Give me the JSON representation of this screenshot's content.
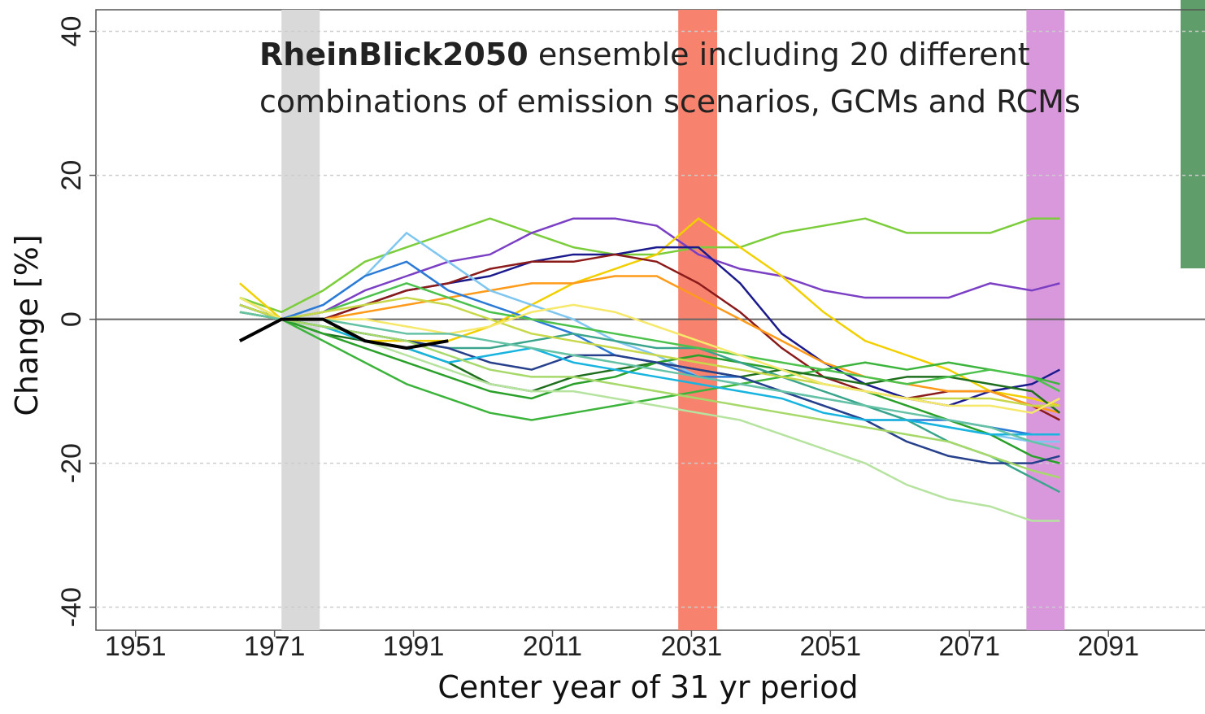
{
  "chart_data": {
    "type": "line",
    "annotation": {
      "bold": "RheinBlick2050",
      "text": "ensemble including 20 different",
      "text2": "combinations of emission scenarios, GCMs and RCMs"
    },
    "xlabel": "Center year of 31 yr period",
    "ylabel": "Change [%]",
    "xlim": [
      1945.3,
      2104.9
    ],
    "ylim": [
      -43.2,
      43
    ],
    "xticks": [
      1951,
      1971,
      1991,
      2011,
      2031,
      2051,
      2071,
      2091
    ],
    "yticks": [
      40,
      20,
      0,
      -20,
      -40
    ],
    "grid": true,
    "bands": [
      {
        "x0": 1972.0,
        "x1": 1977.5,
        "color": "#d9d9d9"
      },
      {
        "x0": 2029.1,
        "x1": 2034.7,
        "color": "#f7836f"
      },
      {
        "x0": 2079.2,
        "x1": 2084.7,
        "color": "#d998dc"
      }
    ],
    "x": [
      1966,
      1972,
      1978,
      1984,
      1990,
      1996,
      2002,
      2008,
      2014,
      2020,
      2026,
      2032,
      2038,
      2044,
      2050,
      2056,
      2062,
      2068,
      2074,
      2080,
      2084
    ],
    "series": [
      {
        "color": "#7ccd3c",
        "values": [
          3,
          1,
          4,
          8,
          10,
          12,
          14,
          12,
          10,
          9,
          9,
          10,
          10,
          12,
          13,
          14,
          12,
          12,
          12,
          14,
          14
        ]
      },
      {
        "color": "#7b3fc4",
        "values": [
          2,
          0,
          1,
          4,
          6,
          8,
          9,
          12,
          14,
          14,
          13,
          9,
          7,
          6,
          4,
          3,
          3,
          3,
          5,
          4,
          5
        ]
      },
      {
        "color": "#f2d000",
        "values": [
          5,
          0,
          -1,
          -3,
          -3,
          -3,
          -1,
          2,
          5,
          7,
          9,
          14,
          10,
          6,
          1,
          -3,
          -5,
          -7,
          -10,
          -11,
          -12
        ]
      },
      {
        "color": "#1a1a8c",
        "values": [
          2,
          0,
          0,
          2,
          4,
          5,
          6,
          8,
          9,
          9,
          10,
          10,
          5,
          -2,
          -6,
          -9,
          -11,
          -12,
          -10,
          -9,
          -7
        ]
      },
      {
        "color": "#8b1a1a",
        "values": [
          1,
          0,
          0,
          2,
          4,
          5,
          7,
          8,
          8,
          9,
          8,
          5,
          1,
          -4,
          -8,
          -10,
          -11,
          -10,
          -10,
          -12,
          -14
        ]
      },
      {
        "color": "#ff9a1a",
        "values": [
          3,
          0,
          0,
          1,
          2,
          3,
          4,
          5,
          5,
          6,
          6,
          3,
          0,
          -3,
          -6,
          -8,
          -9,
          -10,
          -10,
          -12,
          -13
        ]
      },
      {
        "color": "#7fc6f0",
        "values": [
          2,
          0,
          2,
          6,
          12,
          8,
          4,
          2,
          0,
          -3,
          -5,
          -8,
          -9,
          -10,
          -11,
          -12,
          -14,
          -15,
          -16,
          -17,
          -17
        ]
      },
      {
        "color": "#2b7bd6",
        "values": [
          1,
          0,
          2,
          6,
          8,
          4,
          2,
          0,
          -2,
          -5,
          -6,
          -8,
          -8,
          -10,
          -12,
          -14,
          -14,
          -14,
          -15,
          -16,
          -16
        ]
      },
      {
        "color": "#3cb43c",
        "values": [
          1,
          0,
          -3,
          -6,
          -9,
          -11,
          -13,
          -14,
          -13,
          -12,
          -11,
          -10,
          -9,
          -8,
          -7,
          -6,
          -7,
          -6,
          -7,
          -8,
          -9
        ]
      },
      {
        "color": "#1e6e1e",
        "values": [
          2,
          0,
          -2,
          -3,
          -4,
          -6,
          -9,
          -10,
          -8,
          -7,
          -6,
          -7,
          -8,
          -7,
          -8,
          -9,
          -8,
          -8,
          -9,
          -10,
          -13
        ]
      },
      {
        "color": "#2aa02a",
        "values": [
          1,
          0,
          -2,
          -4,
          -6,
          -8,
          -10,
          -11,
          -9,
          -8,
          -6,
          -5,
          -6,
          -7,
          -9,
          -10,
          -12,
          -14,
          -16,
          -19,
          -20
        ]
      },
      {
        "color": "#b6e3a0",
        "values": [
          1,
          0,
          -1,
          -3,
          -5,
          -7,
          -9,
          -10,
          -10,
          -11,
          -12,
          -13,
          -14,
          -16,
          -18,
          -20,
          -23,
          -25,
          -26,
          -28,
          -28
        ]
      },
      {
        "color": "#3aa58c",
        "values": [
          2,
          0,
          -1,
          -2,
          -3,
          -4,
          -4,
          -3,
          -2,
          -3,
          -4,
          -4,
          -6,
          -8,
          -10,
          -12,
          -14,
          -17,
          -19,
          -22,
          -24
        ]
      },
      {
        "color": "#27408b",
        "values": [
          2,
          0,
          -1,
          -2,
          -3,
          -4,
          -6,
          -7,
          -5,
          -5,
          -6,
          -7,
          -8,
          -10,
          -12,
          -14,
          -17,
          -19,
          -20,
          -20,
          -19
        ]
      },
      {
        "color": "#18b4e0",
        "values": [
          2,
          0,
          -1,
          -3,
          -4,
          -6,
          -5,
          -4,
          -6,
          -7,
          -8,
          -9,
          -10,
          -11,
          -13,
          -14,
          -14,
          -15,
          -16,
          -16,
          -16
        ]
      },
      {
        "color": "#a6d96a",
        "values": [
          1,
          0,
          -1,
          -2,
          -3,
          -5,
          -7,
          -8,
          -8,
          -9,
          -10,
          -11,
          -12,
          -13,
          -14,
          -15,
          -16,
          -17,
          -19,
          -21,
          -22
        ]
      },
      {
        "color": "#4cc24c",
        "values": [
          3,
          0,
          1,
          3,
          5,
          3,
          1,
          0,
          -1,
          -2,
          -3,
          -4,
          -5,
          -6,
          -7,
          -8,
          -9,
          -8,
          -7,
          -8,
          -10
        ]
      },
      {
        "color": "#c8d84a",
        "values": [
          2,
          0,
          1,
          2,
          3,
          2,
          0,
          -2,
          -3,
          -4,
          -5,
          -6,
          -7,
          -8,
          -9,
          -10,
          -11,
          -11,
          -11,
          -12,
          -12
        ]
      },
      {
        "color": "#f5e86a",
        "values": [
          3,
          0,
          0,
          0,
          -1,
          -2,
          -1,
          1,
          2,
          1,
          -1,
          -3,
          -5,
          -7,
          -9,
          -10,
          -11,
          -12,
          -12,
          -13,
          -11
        ]
      },
      {
        "color": "#66c2a5",
        "values": [
          1,
          0,
          0,
          -1,
          -2,
          -2,
          -3,
          -4,
          -5,
          -6,
          -7,
          -8,
          -9,
          -10,
          -11,
          -12,
          -13,
          -14,
          -15,
          -17,
          -18
        ]
      },
      {
        "color": "#000000",
        "values": [
          -3,
          0,
          0,
          -3,
          -4,
          -3,
          null,
          null,
          null,
          null,
          null,
          null,
          null,
          null,
          null,
          null,
          null,
          null,
          null,
          null,
          null
        ]
      }
    ]
  }
}
